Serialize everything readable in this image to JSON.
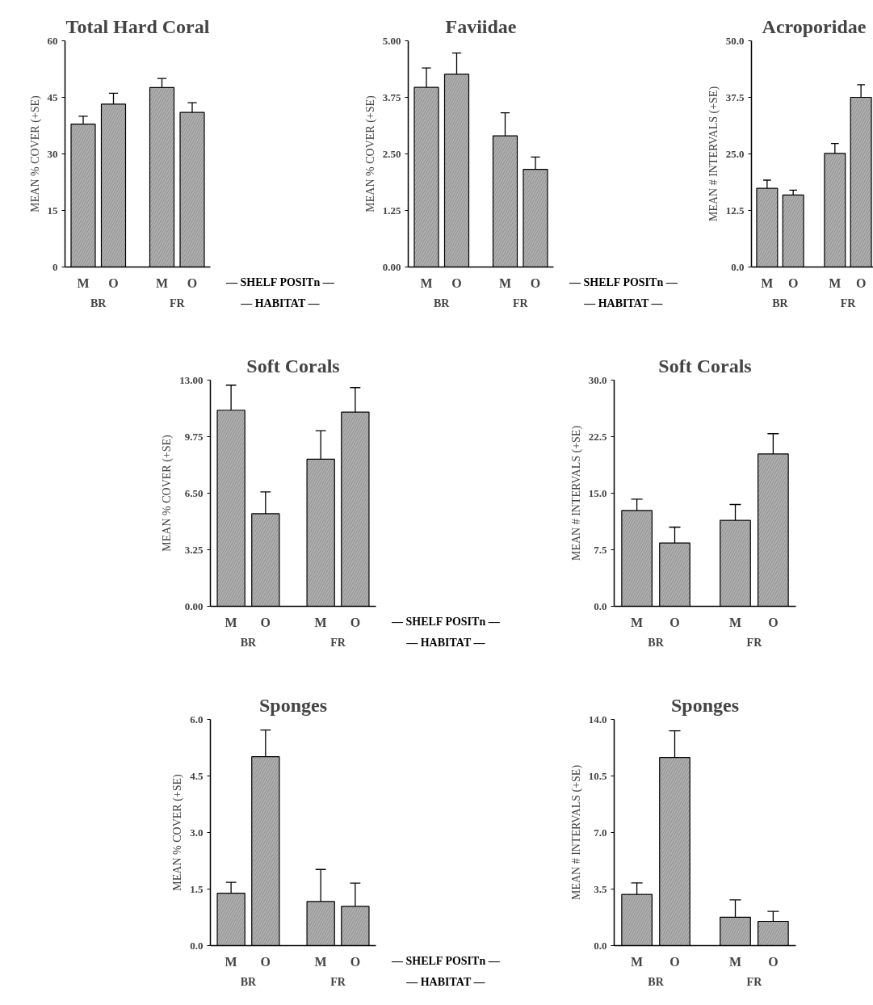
{
  "chart_data": [
    {
      "type": "bar",
      "title": "Total Hard Coral",
      "ylabel": "MEAN % COVER (+SE)",
      "categories": [
        "M",
        "O",
        "M",
        "O"
      ],
      "values": [
        37.9,
        43.2,
        47.6,
        41.0
      ],
      "errors": [
        [
          37.9,
          40.0
        ],
        [
          43.2,
          46.1
        ],
        [
          47.6,
          50.0
        ],
        [
          41.0,
          43.6
        ]
      ],
      "color": "#b0b0b0",
      "ylim": [
        0,
        60
      ],
      "yticks": [
        0,
        15,
        30,
        45,
        60
      ],
      "annotations": [
        "BR",
        "FR",
        "— SHELF POSITn —",
        "— HABITAT —"
      ]
    },
    {
      "type": "bar",
      "title": "Faviidae",
      "ylabel": "MEAN % COVER (+SE)",
      "categories": [
        "M",
        "O",
        "M",
        "O"
      ],
      "values": [
        3.97,
        4.26,
        2.9,
        2.16
      ],
      "errors": [
        [
          3.97,
          4.4
        ],
        [
          4.26,
          4.73
        ],
        [
          2.9,
          3.41
        ],
        [
          2.16,
          2.43
        ]
      ],
      "color": "#b0b0b0",
      "ylim": [
        0,
        5
      ],
      "yticks": [
        {
          "value": 0,
          "label": "0.00"
        },
        {
          "value": 1.25,
          "label": "1.25"
        },
        {
          "value": 2.5,
          "label": "2.50"
        },
        {
          "value": 3.75,
          "label": "3.75"
        },
        {
          "value": 5,
          "label": "5.00"
        }
      ],
      "annotations": [
        "BR",
        "FR",
        "— SHELF POSITn —",
        "— HABITAT —"
      ]
    },
    {
      "type": "bar",
      "title": "Acroporidae",
      "ylabel": "MEAN # INTERVALS (+SE)",
      "categories": [
        "M",
        "O",
        "M",
        "O"
      ],
      "values": [
        17.4,
        15.9,
        25.1,
        37.5
      ],
      "errors": [
        [
          17.4,
          19.2
        ],
        [
          15.9,
          17.0
        ],
        [
          25.1,
          27.3
        ],
        [
          37.5,
          40.3
        ]
      ],
      "color": "#b0b0b0",
      "ylim": [
        0,
        50
      ],
      "yticks": [
        {
          "value": 0,
          "label": "0.0"
        },
        12.5,
        {
          "value": 25,
          "label": "25.0"
        },
        37.5,
        {
          "value": 50,
          "label": "50.0"
        }
      ],
      "annotations": [
        "BR",
        "FR"
      ]
    },
    {
      "type": "bar",
      "title": "Soft Corals",
      "ylabel": "MEAN % COVER (+SE)",
      "categories": [
        "M",
        "O",
        "M",
        "O"
      ],
      "values": [
        11.27,
        5.32,
        8.46,
        11.16
      ],
      "errors": [
        [
          11.27,
          12.71
        ],
        [
          5.32,
          6.58
        ],
        [
          8.46,
          10.09
        ],
        [
          11.16,
          12.57
        ]
      ],
      "color": "#b0b0b0",
      "ylim": [
        0,
        13
      ],
      "yticks": [
        {
          "value": 0,
          "label": "0.00"
        },
        3.25,
        {
          "value": 6.5,
          "label": "6.50"
        },
        9.75,
        {
          "value": 13,
          "label": "13.00"
        }
      ],
      "annotations": [
        "BR",
        "FR",
        "— SHELF POSITn —",
        "— HABITAT —"
      ]
    },
    {
      "type": "bar",
      "title": "Soft Corals",
      "ylabel": "MEAN # INTERVALS (+SE)",
      "categories": [
        "M",
        "O",
        "M",
        "O"
      ],
      "values": [
        12.7,
        8.4,
        11.4,
        20.2
      ],
      "errors": [
        [
          12.7,
          14.2
        ],
        [
          8.4,
          10.5
        ],
        [
          11.4,
          13.5
        ],
        [
          20.2,
          22.9
        ]
      ],
      "color": "#b0b0b0",
      "ylim": [
        0,
        30
      ],
      "yticks": [
        {
          "value": 0,
          "label": "0.0"
        },
        7.5,
        {
          "value": 15,
          "label": "15.0"
        },
        22.5,
        {
          "value": 30,
          "label": "30.0"
        }
      ],
      "annotations": [
        "BR",
        "FR"
      ]
    },
    {
      "type": "bar",
      "title": "Sponges",
      "ylabel": "MEAN % COVER (+SE)",
      "categories": [
        "M",
        "O",
        "M",
        "O"
      ],
      "values": [
        1.39,
        5.01,
        1.17,
        1.04
      ],
      "errors": [
        [
          1.39,
          1.68
        ],
        [
          5.01,
          5.72
        ],
        [
          1.17,
          2.02
        ],
        [
          1.04,
          1.66
        ]
      ],
      "color": "#b0b0b0",
      "ylim": [
        0,
        6
      ],
      "yticks": [
        {
          "value": 0,
          "label": "0.0"
        },
        1.5,
        {
          "value": 3,
          "label": "3.0"
        },
        4.5,
        {
          "value": 6,
          "label": "6.0"
        }
      ],
      "annotations": [
        "BR",
        "FR",
        "— SHELF POSITn —",
        "— HABITAT —"
      ]
    },
    {
      "type": "bar",
      "title": "Sponges",
      "ylabel": "MEAN # INTERVALS (+SE)",
      "categories": [
        "M",
        "O",
        "M",
        "O"
      ],
      "values": [
        3.17,
        11.64,
        1.76,
        1.5
      ],
      "errors": [
        [
          3.17,
          3.88
        ],
        [
          11.64,
          13.29
        ],
        [
          1.76,
          2.83
        ],
        [
          1.5,
          2.12
        ]
      ],
      "color": "#b0b0b0",
      "ylim": [
        0,
        14
      ],
      "yticks": [
        {
          "value": 0,
          "label": "0.0"
        },
        3.5,
        {
          "value": 7,
          "label": "7.0"
        },
        10.5,
        {
          "value": 14,
          "label": "14.0"
        }
      ],
      "annotations": [
        "BR",
        "FR"
      ]
    }
  ]
}
